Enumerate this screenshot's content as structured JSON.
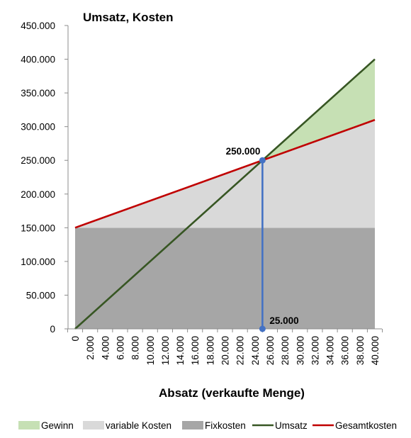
{
  "chart_data": {
    "type": "area",
    "title": "Umsatz, Kosten",
    "xlabel": "Absatz (verkaufte Menge)",
    "ylabel": "",
    "xlim": [
      0,
      40000
    ],
    "ylim": [
      0,
      450000
    ],
    "yticks": [
      0,
      50000,
      100000,
      150000,
      200000,
      250000,
      300000,
      350000,
      400000,
      450000
    ],
    "ytick_labels": [
      "0",
      "50.000",
      "100.000",
      "150.000",
      "200.000",
      "250.000",
      "300.000",
      "350.000",
      "400.000",
      "450.000"
    ],
    "xticks": [
      0,
      2000,
      4000,
      6000,
      8000,
      10000,
      12000,
      14000,
      16000,
      18000,
      20000,
      22000,
      24000,
      26000,
      28000,
      30000,
      32000,
      34000,
      36000,
      38000,
      40000
    ],
    "xtick_labels": [
      "0",
      "2.000",
      "4.000",
      "6.000",
      "8.000",
      "10.000",
      "12.000",
      "14.000",
      "16.000",
      "18.000",
      "20.000",
      "22.000",
      "24.000",
      "26.000",
      "28.000",
      "30.000",
      "32.000",
      "34.000",
      "36.000",
      "38.000",
      "40.000"
    ],
    "grid": false,
    "legend_position": "bottom",
    "series": [
      {
        "name": "Gewinn",
        "kind": "area",
        "color": "#c6e0b4",
        "x": [
          25000,
          40000
        ],
        "lower": [
          250000,
          310000
        ],
        "upper": [
          250000,
          400000
        ]
      },
      {
        "name": "variable Kosten",
        "kind": "area",
        "color": "#d9d9d9",
        "x": [
          0,
          40000
        ],
        "lower": [
          150000,
          150000
        ],
        "upper": [
          150000,
          310000
        ]
      },
      {
        "name": "Fixkosten",
        "kind": "area",
        "color": "#a6a6a6",
        "x": [
          0,
          40000
        ],
        "lower": [
          0,
          0
        ],
        "upper": [
          150000,
          150000
        ]
      },
      {
        "name": "Umsatz",
        "kind": "line",
        "color": "#375623",
        "x": [
          0,
          40000
        ],
        "y": [
          0,
          400000
        ]
      },
      {
        "name": "Gesamtkosten",
        "kind": "line",
        "color": "#c00000",
        "x": [
          0,
          40000
        ],
        "y": [
          150000,
          310000
        ]
      }
    ],
    "break_even": {
      "x": 25000,
      "y": 250000,
      "x_label": "25.000",
      "y_label": "250.000",
      "color": "#4472c4"
    }
  }
}
